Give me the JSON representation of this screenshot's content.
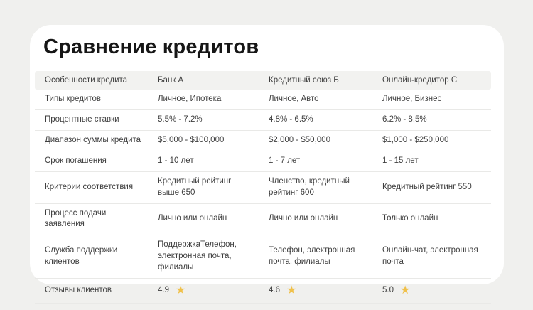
{
  "title": "Сравнение кредитов",
  "colors": {
    "page_background": "#f0f0ee",
    "card_background": "#ffffff",
    "header_background": "#f2f2f0",
    "divider": "#e9e9e7",
    "text": "#3e3e3e",
    "title_text": "#161616",
    "star": "#f0c14b"
  },
  "table": {
    "columns": [
      "Особенности кредита",
      "Банк А",
      "Кредитный союз Б",
      "Онлайн-кредитор С"
    ],
    "rows": [
      {
        "feature": "Типы кредитов",
        "values": [
          "Личное, Ипотека",
          "Личное, Авто",
          "Личное, Бизнес"
        ]
      },
      {
        "feature": "Процентные ставки",
        "values": [
          "5.5% - 7.2%",
          "4.8% - 6.5%",
          "6.2% - 8.5%"
        ]
      },
      {
        "feature": "Диапазон суммы кредита",
        "values": [
          "$5,000 - $100,000",
          "$2,000 - $50,000",
          "$1,000 - $250,000"
        ]
      },
      {
        "feature": "Срок погашения",
        "values": [
          "1 - 10 лет",
          "1 - 7 лет",
          "1 - 15 лет"
        ]
      },
      {
        "feature": "Критерии соответствия",
        "values": [
          "Кредитный рейтинг выше 650",
          "Членство, кредитный рейтинг 600",
          "Кредитный рейтинг 550"
        ]
      },
      {
        "feature": "Процесс подачи заявления",
        "values": [
          "Лично или онлайн",
          "Лично или онлайн",
          "Только онлайн"
        ]
      },
      {
        "feature": "Служба поддержки клиентов",
        "values": [
          "ПоддержкаТелефон, электронная почта, филиалы",
          "Телефон, электронная почта, филиалы",
          "Онлайн-чат, электронная почта"
        ]
      },
      {
        "feature": "Отзывы клиентов",
        "type": "rating",
        "values": [
          "4.9",
          "4.6",
          "5.0"
        ]
      }
    ],
    "star_icon": "★"
  }
}
